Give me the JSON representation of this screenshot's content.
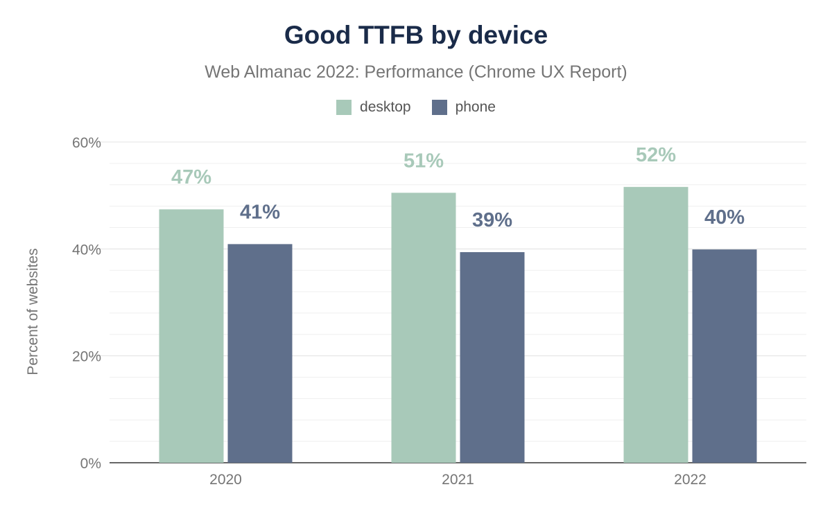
{
  "chart_data": {
    "type": "bar",
    "title": "Good TTFB by device",
    "subtitle": "Web Almanac 2022: Performance (Chrome UX Report)",
    "xlabel": "",
    "ylabel": "Percent of websites",
    "categories": [
      "2020",
      "2021",
      "2022"
    ],
    "series": [
      {
        "name": "desktop",
        "values": [
          47.4,
          50.5,
          51.6
        ],
        "labels": [
          "47%",
          "51%",
          "52%"
        ],
        "color": "#a8c9b9"
      },
      {
        "name": "phone",
        "values": [
          40.9,
          39.4,
          39.9
        ],
        "labels": [
          "41%",
          "39%",
          "40%"
        ],
        "color": "#5f6f8b"
      }
    ],
    "ylim": [
      0,
      60
    ],
    "yticks": [
      "0%",
      "20%",
      "40%",
      "60%"
    ],
    "grid": true,
    "legend_position": "top"
  }
}
